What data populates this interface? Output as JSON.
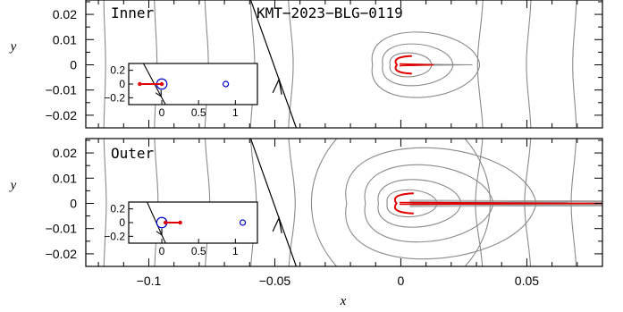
{
  "figure": {
    "title": "KMT−2023−BLG−0119",
    "xlabel": "x",
    "ylabel": "y"
  },
  "chart_data": [
    {
      "type": "line",
      "panel": "Inner",
      "label": "Inner",
      "title": "KMT−2023−BLG−0119",
      "xlabel": "",
      "ylabel": "y",
      "xlim": [
        -0.125,
        0.08
      ],
      "ylim": [
        -0.025,
        0.025
      ],
      "x_ticks": [
        -0.1,
        -0.05,
        0,
        0.05
      ],
      "x_tick_labels": [
        "",
        "",
        "",
        ""
      ],
      "y_ticks": [
        0.02,
        0.01,
        0,
        -0.01,
        -0.02
      ],
      "y_tick_labels": [
        "0.02",
        "0.01",
        "0",
        "−0.01",
        "−0.02"
      ],
      "colors": {
        "caustic": "#e00000",
        "contour": "#8a8a8a",
        "trajectory": "#000000",
        "lens": "#0000cc"
      },
      "source_trajectory": {
        "x": [
          -0.0595,
          -0.0415
        ],
        "y": [
          0.0255,
          -0.025
        ]
      },
      "caustic": {
        "center_x": -0.0005,
        "half_width": 0.0035,
        "tail_to_x": 0.013
      },
      "inset": {
        "xlim": [
          -0.45,
          1.3
        ],
        "ylim": [
          -0.3,
          0.3
        ],
        "x_tick_labels": [
          "0",
          "0.5",
          "1"
        ],
        "y_tick_labels": [
          "0.2",
          "0",
          "−0.2"
        ],
        "lenses": [
          {
            "x": 0.0,
            "y": 0.0,
            "r": 0.07
          },
          {
            "x": 0.87,
            "y": 0.0,
            "r": 0.035
          }
        ],
        "caustic_points": [
          {
            "x": -0.3,
            "y": 0.0
          },
          {
            "x": 0.0,
            "y": 0.0
          }
        ],
        "trajectory": {
          "x": [
            -0.25,
            0.05
          ],
          "y": [
            0.3,
            -0.3
          ]
        }
      }
    },
    {
      "type": "line",
      "panel": "Outer",
      "label": "Outer",
      "title": "",
      "xlabel": "x",
      "ylabel": "y",
      "xlim": [
        -0.125,
        0.08
      ],
      "ylim": [
        -0.025,
        0.025
      ],
      "x_ticks": [
        -0.1,
        -0.05,
        0,
        0.05
      ],
      "x_tick_labels": [
        "−0.1",
        "−0.05",
        "0",
        "0.05"
      ],
      "y_ticks": [
        0.02,
        0.01,
        0,
        -0.01,
        -0.02
      ],
      "y_tick_labels": [
        "0.02",
        "0.01",
        "0",
        "−0.01",
        "−0.02"
      ],
      "colors": {
        "caustic": "#e00000",
        "contour": "#8a8a8a",
        "trajectory": "#000000",
        "lens": "#0000cc"
      },
      "source_trajectory": {
        "x": [
          -0.0595,
          -0.0415
        ],
        "y": [
          0.0255,
          -0.025
        ]
      },
      "caustic": {
        "center_x": -0.0005,
        "half_width": 0.004,
        "tail_to_x": 0.08
      },
      "inset": {
        "xlim": [
          -0.45,
          1.3
        ],
        "ylim": [
          -0.3,
          0.3
        ],
        "x_tick_labels": [
          "0",
          "0.5",
          "1"
        ],
        "y_tick_labels": [
          "0.2",
          "0",
          "−0.2"
        ],
        "lenses": [
          {
            "x": 0.0,
            "y": 0.0,
            "r": 0.07
          },
          {
            "x": 1.1,
            "y": 0.0,
            "r": 0.035
          }
        ],
        "caustic_points": [
          {
            "x": 0.05,
            "y": 0.0
          },
          {
            "x": 0.25,
            "y": 0.0
          }
        ],
        "trajectory": {
          "x": [
            -0.2,
            0.05
          ],
          "y": [
            0.3,
            -0.3
          ]
        }
      }
    }
  ]
}
